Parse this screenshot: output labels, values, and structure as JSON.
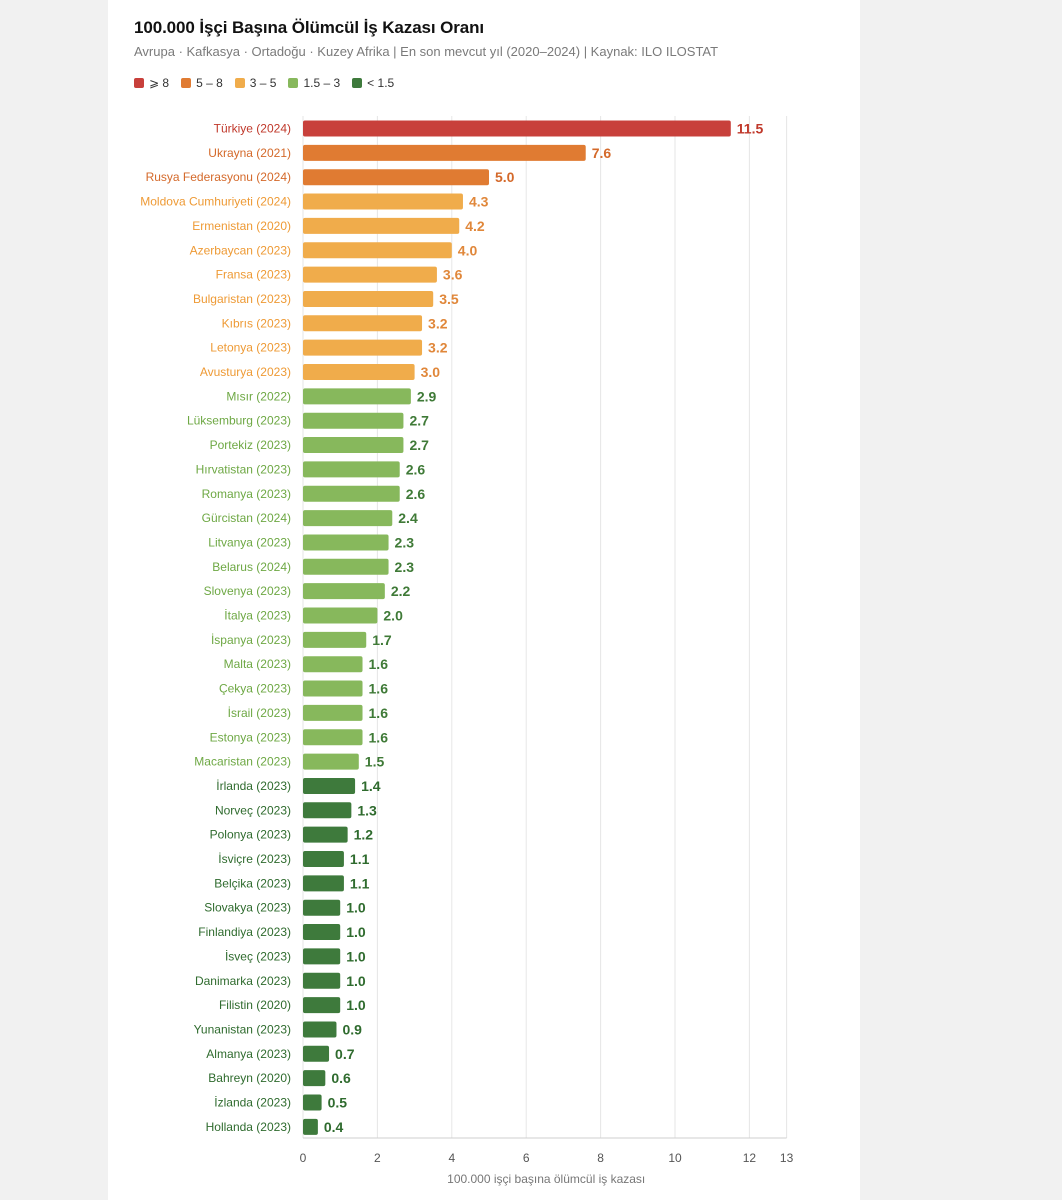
{
  "header": {
    "title": "100.000 İşçi Başına Ölümcül İş Kazası Oranı",
    "subtitle": "Avrupa · Kafkasya · Ortadoğu · Kuzey Afrika  |  En son mevcut yıl (2020–2024)  |  Kaynak: ILO ILOSTAT"
  },
  "legend": [
    {
      "label": "⩾ 8",
      "color": "#c8403b"
    },
    {
      "label": "5 – 8",
      "color": "#e07b32"
    },
    {
      "label": "3 – 5",
      "color": "#f0ac4b"
    },
    {
      "label": "1.5 – 3",
      "color": "#87b85c"
    },
    {
      "label": "< 1.5",
      "color": "#3e7a3c"
    }
  ],
  "chart_data": {
    "type": "bar",
    "orientation": "horizontal",
    "xlabel": "100.000 işçi başına ölümcül iş kazası",
    "xlim": [
      0,
      13
    ],
    "xticks": [
      0,
      2,
      4,
      6,
      8,
      10,
      12,
      13
    ],
    "grid": true,
    "categories": [
      "Türkiye (2024)",
      "Ukrayna (2021)",
      "Rusya Federasyonu (2024)",
      "Moldova Cumhuriyeti (2024)",
      "Ermenistan (2020)",
      "Azerbaycan (2023)",
      "Fransa (2023)",
      "Bulgaristan (2023)",
      "Kıbrıs (2023)",
      "Letonya (2023)",
      "Avusturya (2023)",
      "Mısır (2022)",
      "Lüksemburg (2023)",
      "Portekiz (2023)",
      "Hırvatistan (2023)",
      "Romanya (2023)",
      "Gürcistan (2024)",
      "Litvanya (2023)",
      "Belarus (2024)",
      "Slovenya (2023)",
      "İtalya (2023)",
      "İspanya (2023)",
      "Malta (2023)",
      "Çekya (2023)",
      "İsrail (2023)",
      "Estonya (2023)",
      "Macaristan (2023)",
      "İrlanda (2023)",
      "Norveç (2023)",
      "Polonya (2023)",
      "İsviçre (2023)",
      "Belçika (2023)",
      "Slovakya (2023)",
      "Finlandiya (2023)",
      "İsveç (2023)",
      "Danimarka (2023)",
      "Filistin (2020)",
      "Yunanistan (2023)",
      "Almanya (2023)",
      "Bahreyn (2020)",
      "İzlanda (2023)",
      "Hollanda (2023)"
    ],
    "values": [
      11.5,
      7.6,
      5.0,
      4.3,
      4.2,
      4.0,
      3.6,
      3.5,
      3.2,
      3.2,
      3.0,
      2.9,
      2.7,
      2.7,
      2.6,
      2.6,
      2.4,
      2.3,
      2.3,
      2.2,
      2.0,
      1.7,
      1.6,
      1.6,
      1.6,
      1.6,
      1.5,
      1.4,
      1.3,
      1.2,
      1.1,
      1.1,
      1.0,
      1.0,
      1.0,
      1.0,
      1.0,
      0.9,
      0.7,
      0.6,
      0.5,
      0.4
    ],
    "value_labels": [
      "11.5",
      "7.6",
      "5.0",
      "4.3",
      "4.2",
      "4.0",
      "3.6",
      "3.5",
      "3.2",
      "3.2",
      "3.0",
      "2.9",
      "2.7",
      "2.7",
      "2.6",
      "2.6",
      "2.4",
      "2.3",
      "2.3",
      "2.2",
      "2.0",
      "1.7",
      "1.6",
      "1.6",
      "1.6",
      "1.6",
      "1.5",
      "1.4",
      "1.3",
      "1.2",
      "1.1",
      "1.1",
      "1.0",
      "1.0",
      "1.0",
      "1.0",
      "1.0",
      "0.9",
      "0.7",
      "0.6",
      "0.5",
      "0.4"
    ],
    "colors": {
      "bar": [
        "#c8403b",
        "#e07b32",
        "#e07b32",
        "#f0ac4b",
        "#f0ac4b",
        "#f0ac4b",
        "#f0ac4b",
        "#f0ac4b",
        "#f0ac4b",
        "#f0ac4b",
        "#f0ac4b",
        "#87b85c",
        "#87b85c",
        "#87b85c",
        "#87b85c",
        "#87b85c",
        "#87b85c",
        "#87b85c",
        "#87b85c",
        "#87b85c",
        "#87b85c",
        "#87b85c",
        "#87b85c",
        "#87b85c",
        "#87b85c",
        "#87b85c",
        "#87b85c",
        "#3e7a3c",
        "#3e7a3c",
        "#3e7a3c",
        "#3e7a3c",
        "#3e7a3c",
        "#3e7a3c",
        "#3e7a3c",
        "#3e7a3c",
        "#3e7a3c",
        "#3e7a3c",
        "#3e7a3c",
        "#3e7a3c",
        "#3e7a3c",
        "#3e7a3c",
        "#3e7a3c"
      ],
      "text": [
        "#c0392b",
        "#d4692a",
        "#d4692a",
        "#ee9a35",
        "#ee9a35",
        "#ee9a35",
        "#ee9a35",
        "#ee9a35",
        "#ee9a35",
        "#ee9a35",
        "#ee9a35",
        "#6ea844",
        "#6ea844",
        "#6ea844",
        "#6ea844",
        "#6ea844",
        "#6ea844",
        "#6ea844",
        "#6ea844",
        "#6ea844",
        "#6ea844",
        "#6ea844",
        "#6ea844",
        "#6ea844",
        "#6ea844",
        "#6ea844",
        "#6ea844",
        "#2f6b2e",
        "#2f6b2e",
        "#2f6b2e",
        "#2f6b2e",
        "#2f6b2e",
        "#2f6b2e",
        "#2f6b2e",
        "#2f6b2e",
        "#2f6b2e",
        "#2f6b2e",
        "#2f6b2e",
        "#2f6b2e",
        "#2f6b2e",
        "#2f6b2e",
        "#2f6b2e"
      ],
      "value_text": [
        "#c0392b",
        "#d4692a",
        "#d4692a",
        "#e0873a",
        "#e0873a",
        "#e0873a",
        "#e0873a",
        "#e0873a",
        "#e0873a",
        "#e0873a",
        "#e0873a",
        "#3f7a37",
        "#3f7a37",
        "#3f7a37",
        "#3f7a37",
        "#3f7a37",
        "#3f7a37",
        "#3f7a37",
        "#3f7a37",
        "#3f7a37",
        "#3f7a37",
        "#3f7a37",
        "#3f7a37",
        "#3f7a37",
        "#3f7a37",
        "#3f7a37",
        "#3f7a37",
        "#2f6b2e",
        "#2f6b2e",
        "#2f6b2e",
        "#2f6b2e",
        "#2f6b2e",
        "#2f6b2e",
        "#2f6b2e",
        "#2f6b2e",
        "#2f6b2e",
        "#2f6b2e",
        "#2f6b2e",
        "#2f6b2e",
        "#2f6b2e",
        "#2f6b2e",
        "#2f6b2e"
      ]
    }
  }
}
